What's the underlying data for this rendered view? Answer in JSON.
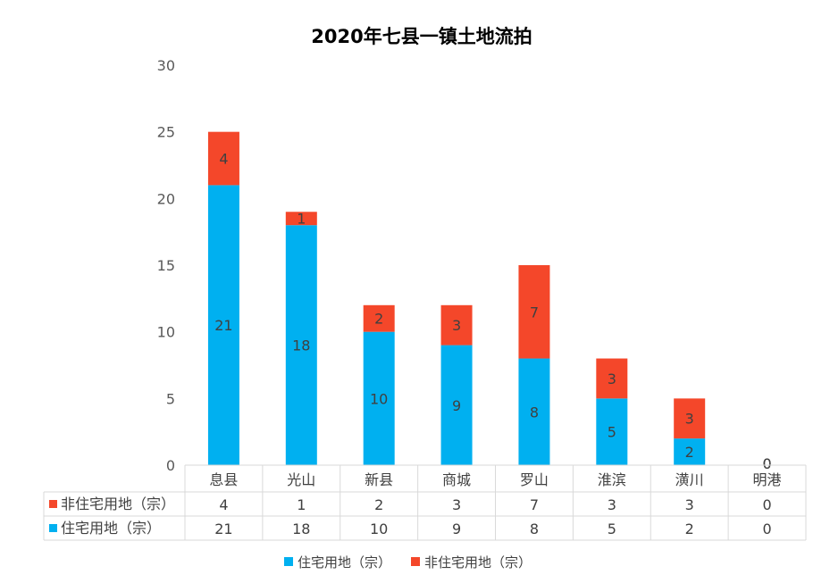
{
  "chart_data": {
    "type": "bar",
    "stacked": true,
    "title": "2020年七县一镇土地流拍",
    "categories": [
      "息县",
      "光山",
      "新县",
      "商城",
      "罗山",
      "淮滨",
      "潢川",
      "明港"
    ],
    "series": [
      {
        "name": "住宅用地（宗）",
        "color": "#00B0F0",
        "values": [
          21,
          18,
          10,
          9,
          8,
          5,
          2,
          0
        ]
      },
      {
        "name": "非住宅用地（宗）",
        "color": "#F4472A",
        "values": [
          4,
          1,
          2,
          3,
          7,
          3,
          3,
          0
        ]
      }
    ],
    "ylim": [
      0,
      30
    ],
    "yticks": [
      0,
      5,
      10,
      15,
      20,
      25,
      30
    ],
    "grid": false,
    "data_table": true,
    "legend": "bottom"
  }
}
